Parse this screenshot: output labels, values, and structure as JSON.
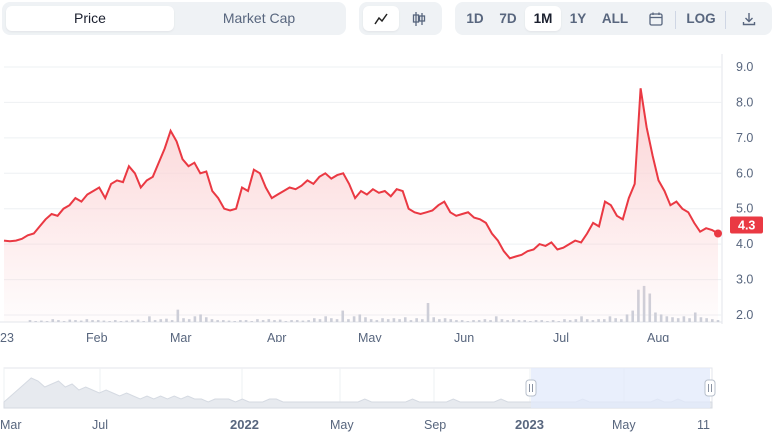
{
  "toggle": {
    "price": "Price",
    "market_cap": "Market Cap"
  },
  "chart_type": {
    "line_icon": "line-chart-icon",
    "candle_icon": "candlestick-icon"
  },
  "timeframes": [
    "1D",
    "7D",
    "1M",
    "1Y",
    "ALL"
  ],
  "active_timeframe": "1M",
  "calendar_icon": "calendar-icon",
  "log_label": "LOG",
  "download_icon": "download-icon",
  "price_badge": "4.3",
  "colors": {
    "line": "#ea3943",
    "fill_top": "#fbd0d2",
    "badge": "#ea3943",
    "volume": "#c9ced8",
    "nav_select": "#e2e9fb"
  },
  "chart_data": {
    "type": "area",
    "y_axis": {
      "ticks": [
        "9.0",
        "8.0",
        "7.0",
        "6.0",
        "5.0",
        "4.0",
        "3.0",
        "2.0"
      ],
      "range": [
        2.0,
        9.0
      ]
    },
    "x_ticks": [
      "23",
      "Feb",
      "Mar",
      "Apr",
      "May",
      "Jun",
      "Jul",
      "Aug"
    ],
    "series": [
      {
        "values": [
          4.1,
          4.08,
          4.1,
          4.15,
          4.25,
          4.3,
          4.5,
          4.7,
          4.85,
          4.8,
          5.0,
          5.1,
          5.3,
          5.2,
          5.4,
          5.5,
          5.6,
          5.3,
          5.7,
          5.8,
          5.75,
          6.2,
          6.0,
          5.6,
          5.8,
          5.9,
          6.3,
          6.7,
          7.2,
          6.9,
          6.4,
          6.2,
          6.3,
          6.0,
          6.05,
          5.5,
          5.3,
          5.0,
          4.95,
          5.0,
          5.6,
          5.5,
          6.1,
          6.0,
          5.6,
          5.3,
          5.4,
          5.5,
          5.6,
          5.55,
          5.65,
          5.8,
          5.7,
          5.9,
          6.0,
          5.85,
          5.95,
          6.0,
          5.7,
          5.3,
          5.5,
          5.4,
          5.55,
          5.45,
          5.5,
          5.35,
          5.55,
          5.5,
          5.0,
          4.9,
          4.85,
          4.9,
          4.95,
          5.1,
          5.2,
          4.9,
          4.8,
          4.85,
          4.9,
          4.75,
          4.7,
          4.6,
          4.3,
          4.1,
          3.8,
          3.6,
          3.65,
          3.7,
          3.8,
          3.85,
          4.0,
          3.95,
          4.05,
          3.85,
          3.9,
          4.0,
          4.1,
          4.05,
          4.3,
          4.6,
          4.5,
          5.2,
          5.1,
          4.8,
          4.7,
          5.3,
          5.7,
          8.4,
          7.3,
          6.5,
          5.8,
          5.5,
          5.1,
          5.2,
          5.0,
          4.9,
          4.6,
          4.35,
          4.45,
          4.4,
          4.3
        ]
      },
      {
        "values": [
          0.2,
          0.1,
          0.15,
          0.1,
          0.3,
          0.2,
          0.1,
          0.25,
          0.2,
          0.15,
          0.3,
          0.2,
          0.2,
          0.15,
          0.1,
          0.2,
          0.1,
          0.15,
          0.2,
          0.25,
          0.1,
          0.6,
          0.2,
          0.3,
          0.35,
          0.2,
          1.3,
          0.4,
          0.3,
          0.6,
          0.8,
          0.5,
          0.3,
          0.2,
          0.2,
          0.15,
          0.1,
          0.2,
          0.2,
          0.1,
          0.3,
          0.2,
          0.3,
          0.2,
          0.25,
          0.1,
          0.2,
          0.2,
          0.15,
          0.2,
          0.4,
          0.3,
          0.6,
          0.4,
          0.3,
          1.2,
          0.3,
          0.6,
          0.8,
          0.5,
          0.3,
          0.2,
          0.4,
          0.3,
          0.4,
          0.3,
          0.5,
          0.2,
          0.4,
          0.3,
          2.0,
          0.5,
          0.3,
          0.4,
          0.3,
          0.2,
          0.2,
          0.1,
          0.2,
          0.2,
          0.3,
          0.2,
          0.6,
          0.3,
          0.2,
          0.3,
          0.2,
          0.2,
          0.1,
          0.2,
          0.2,
          0.1,
          0.2,
          0.1,
          0.3,
          0.2,
          0.3,
          0.6,
          0.3,
          0.2,
          0.3,
          0.3,
          0.6,
          0.4,
          0.3,
          0.8,
          1.2,
          3.4,
          3.8,
          3.0,
          1.0,
          0.8,
          0.6,
          0.5,
          0.4,
          0.6,
          0.4,
          1.0,
          0.5,
          0.4,
          0.3,
          0.2
        ]
      }
    ]
  },
  "navigator": {
    "ticks": [
      "Mar",
      "Jul",
      "2022",
      "May",
      "Sep",
      "2023",
      "May",
      "11"
    ],
    "bold_ticks": [
      false,
      false,
      true,
      false,
      false,
      true,
      false,
      false
    ],
    "handle_icon": "drag-handle-icon",
    "values": [
      2,
      4,
      6,
      8,
      10,
      9,
      7,
      8,
      9,
      7,
      8,
      6,
      7,
      6,
      5,
      6,
      5,
      4,
      5,
      4,
      3,
      4,
      3,
      4,
      3,
      4,
      3,
      4,
      3,
      3,
      2,
      3,
      3,
      3,
      2,
      3,
      2,
      2,
      2,
      3,
      3,
      2,
      2,
      2,
      2,
      2,
      2,
      2,
      2,
      2,
      2,
      2,
      2,
      3,
      2,
      2,
      2,
      2,
      2,
      2,
      3,
      2,
      2,
      2,
      2,
      2,
      3,
      2,
      2,
      2,
      2,
      2,
      2,
      3,
      2,
      2,
      2,
      2,
      2,
      2,
      2,
      2,
      2,
      2,
      2,
      3,
      2,
      2,
      2,
      2,
      2,
      2,
      2,
      2,
      2,
      2,
      3,
      2,
      2,
      3,
      2,
      2,
      2,
      2,
      2
    ]
  }
}
